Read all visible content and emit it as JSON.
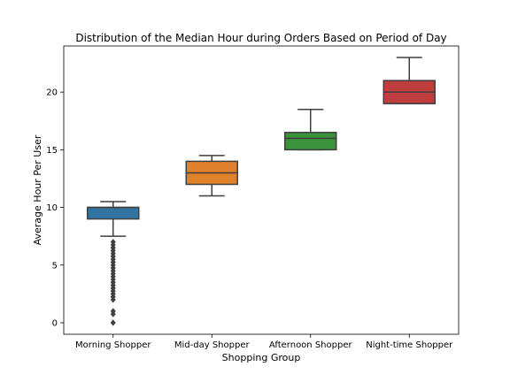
{
  "chart_data": {
    "type": "box",
    "title": "Distribution of the Median Hour during Orders Based on Period of Day",
    "xlabel": "Shopping Group",
    "ylabel": "Average Hour Per User",
    "categories": [
      "Morning Shopper",
      "Mid-day Shopper",
      "Afternoon Shopper",
      "Night-time Shopper"
    ],
    "ylim": [
      -1.0,
      24.0
    ],
    "yticks": [
      0,
      5,
      10,
      15,
      20
    ],
    "grid": false,
    "boxes": [
      {
        "category": "Morning Shopper",
        "color": "#3274a1",
        "whisker_low": 7.5,
        "q1": 9.0,
        "median": 10.0,
        "q3": 10.0,
        "whisker_high": 10.5,
        "outliers": [
          7.0,
          6.75,
          6.5,
          6.25,
          6.0,
          5.75,
          5.5,
          5.25,
          5.0,
          4.75,
          4.5,
          4.25,
          4.0,
          3.75,
          3.5,
          3.25,
          3.0,
          2.75,
          2.5,
          2.25,
          2.0,
          1.0,
          0.75,
          0.0
        ]
      },
      {
        "category": "Mid-day Shopper",
        "color": "#e1812c",
        "whisker_low": 11.0,
        "q1": 12.0,
        "median": 13.0,
        "q3": 14.0,
        "whisker_high": 14.5,
        "outliers": []
      },
      {
        "category": "Afternoon Shopper",
        "color": "#3a923a",
        "whisker_low": 15.0,
        "q1": 15.0,
        "median": 16.0,
        "q3": 16.5,
        "whisker_high": 18.5,
        "outliers": []
      },
      {
        "category": "Night-time Shopper",
        "color": "#c03d3e",
        "whisker_low": 19.0,
        "q1": 19.0,
        "median": 20.0,
        "q3": 21.0,
        "whisker_high": 23.0,
        "outliers": []
      }
    ]
  }
}
